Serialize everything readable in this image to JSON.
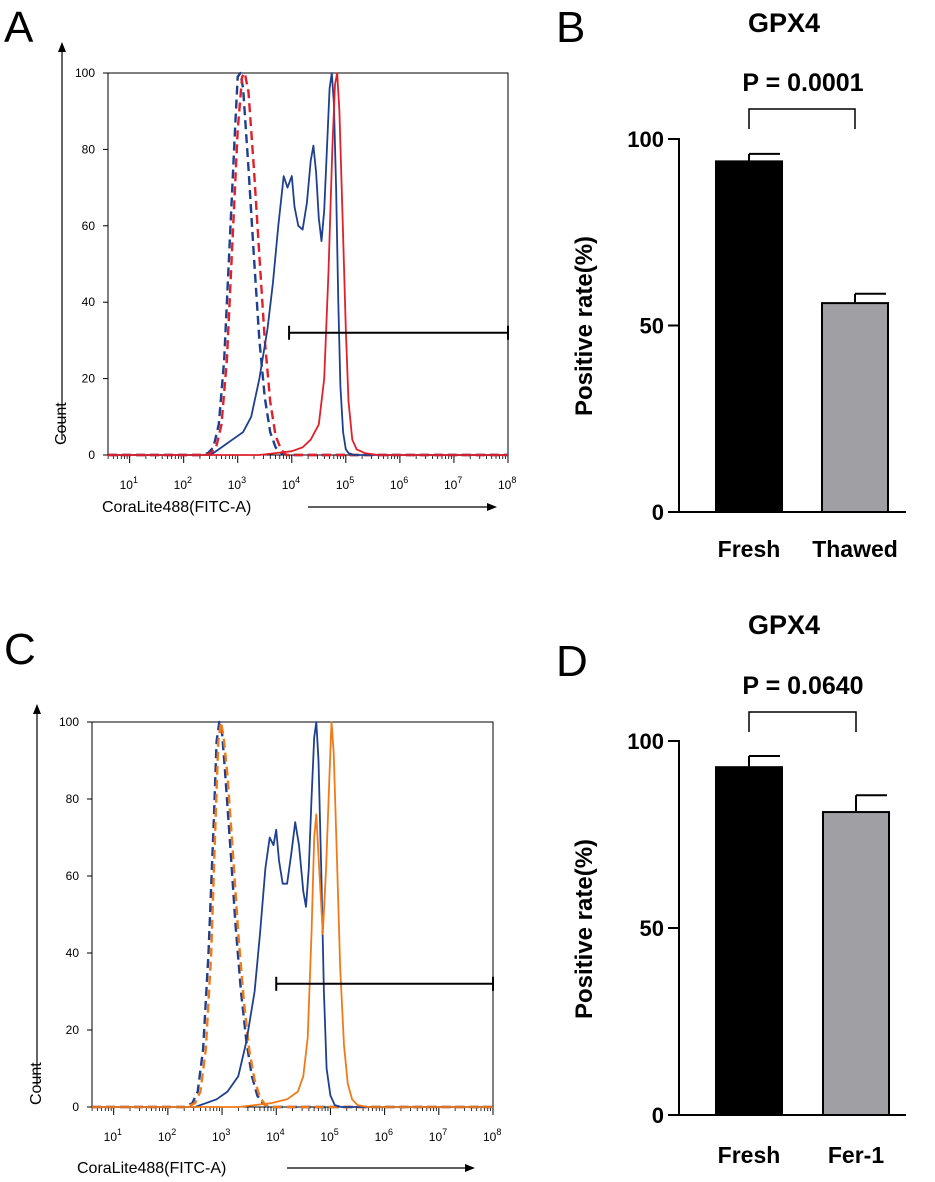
{
  "chart_data": [
    {
      "panel": "A",
      "type": "line",
      "subtype": "flow-cytometry-histogram",
      "xlabel": "CoraLite488(FITC-A)",
      "ylabel": "Count",
      "x_scale": "log",
      "xlim_exp": [
        0.6,
        8.0
      ],
      "ylim": [
        0,
        100
      ],
      "y_ticks": [
        0,
        20,
        40,
        60,
        80,
        100
      ],
      "y_tick_labels": [
        "0",
        "20",
        "40",
        "60",
        "80",
        "100"
      ],
      "x_ticks": [
        {
          "base": "10",
          "exp": "1",
          "pos": 1
        },
        {
          "base": "10",
          "exp": "2",
          "pos": 2
        },
        {
          "base": "10",
          "exp": "3",
          "pos": 3
        },
        {
          "base": "10",
          "exp": "4",
          "pos": 4
        },
        {
          "base": "10",
          "exp": "5",
          "pos": 5
        },
        {
          "base": "10",
          "exp": "6",
          "pos": 6
        },
        {
          "base": "10",
          "exp": "7",
          "pos": 7
        },
        {
          "base": "10",
          "exp": "8",
          "pos": 8
        }
      ],
      "gate": {
        "x_start": 3.95,
        "x_end": 8.0,
        "y": 32
      },
      "series": [
        {
          "name": "control-blue-dashed",
          "color": "#1f3f8f",
          "dashed": true,
          "points": [
            [
              0.6,
              0
            ],
            [
              2.3,
              0
            ],
            [
              2.45,
              0.5
            ],
            [
              2.55,
              2
            ],
            [
              2.65,
              8
            ],
            [
              2.75,
              25
            ],
            [
              2.85,
              55
            ],
            [
              2.95,
              85
            ],
            [
              3.0,
              99
            ],
            [
              3.05,
              100
            ],
            [
              3.1,
              96
            ],
            [
              3.2,
              75
            ],
            [
              3.3,
              52
            ],
            [
              3.4,
              30
            ],
            [
              3.5,
              15
            ],
            [
              3.6,
              6
            ],
            [
              3.7,
              2
            ],
            [
              3.8,
              0.5
            ],
            [
              3.9,
              0
            ],
            [
              8.0,
              0
            ]
          ]
        },
        {
          "name": "control-red-dashed",
          "color": "#e0202a",
          "dashed": true,
          "points": [
            [
              0.6,
              0
            ],
            [
              2.4,
              0
            ],
            [
              2.5,
              0.5
            ],
            [
              2.6,
              2
            ],
            [
              2.7,
              8
            ],
            [
              2.8,
              25
            ],
            [
              2.9,
              55
            ],
            [
              3.0,
              85
            ],
            [
              3.08,
              99
            ],
            [
              3.13,
              100
            ],
            [
              3.2,
              95
            ],
            [
              3.3,
              75
            ],
            [
              3.4,
              52
            ],
            [
              3.5,
              30
            ],
            [
              3.6,
              14
            ],
            [
              3.7,
              5
            ],
            [
              3.8,
              1.5
            ],
            [
              3.9,
              0
            ],
            [
              8.0,
              0
            ]
          ]
        },
        {
          "name": "stained-blue",
          "color": "#1f3f8f",
          "dashed": false,
          "points": [
            [
              0.6,
              0
            ],
            [
              2.5,
              0
            ],
            [
              2.7,
              2
            ],
            [
              2.9,
              4
            ],
            [
              3.1,
              6
            ],
            [
              3.25,
              10
            ],
            [
              3.4,
              20
            ],
            [
              3.55,
              33
            ],
            [
              3.65,
              45
            ],
            [
              3.75,
              60
            ],
            [
              3.85,
              73
            ],
            [
              3.92,
              70
            ],
            [
              4.0,
              73
            ],
            [
              4.05,
              65
            ],
            [
              4.12,
              60
            ],
            [
              4.2,
              59
            ],
            [
              4.28,
              66
            ],
            [
              4.35,
              77
            ],
            [
              4.4,
              81
            ],
            [
              4.45,
              74
            ],
            [
              4.5,
              62
            ],
            [
              4.55,
              56
            ],
            [
              4.6,
              64
            ],
            [
              4.65,
              80
            ],
            [
              4.7,
              96
            ],
            [
              4.74,
              100
            ],
            [
              4.78,
              92
            ],
            [
              4.82,
              70
            ],
            [
              4.86,
              40
            ],
            [
              4.9,
              18
            ],
            [
              4.95,
              6
            ],
            [
              5.0,
              1.5
            ],
            [
              5.05,
              0.5
            ],
            [
              5.15,
              0
            ],
            [
              8.0,
              0
            ]
          ]
        },
        {
          "name": "stained-red",
          "color": "#e0202a",
          "dashed": false,
          "points": [
            [
              0.6,
              0
            ],
            [
              3.4,
              0
            ],
            [
              3.7,
              0.5
            ],
            [
              4.0,
              1
            ],
            [
              4.2,
              2
            ],
            [
              4.35,
              4
            ],
            [
              4.5,
              8
            ],
            [
              4.6,
              20
            ],
            [
              4.68,
              48
            ],
            [
              4.75,
              80
            ],
            [
              4.8,
              97
            ],
            [
              4.84,
              100
            ],
            [
              4.88,
              90
            ],
            [
              4.94,
              62
            ],
            [
              5.0,
              33
            ],
            [
              5.05,
              14
            ],
            [
              5.12,
              4
            ],
            [
              5.2,
              1.5
            ],
            [
              5.35,
              0.5
            ],
            [
              5.6,
              0
            ],
            [
              8.0,
              0
            ]
          ]
        }
      ]
    },
    {
      "panel": "B",
      "type": "bar",
      "title": "GPX4",
      "ylabel": "Positive rate(%)",
      "ylim": [
        0,
        100
      ],
      "y_ticks": [
        0,
        50,
        100
      ],
      "y_tick_labels": [
        "0",
        "50",
        "100"
      ],
      "categories": [
        "Fresh",
        "Thawed"
      ],
      "values": [
        94,
        56
      ],
      "errors": [
        2,
        2.5
      ],
      "colors": [
        "#000000",
        "#a0a0a4"
      ],
      "p_value": "P = 0.0001"
    },
    {
      "panel": "C",
      "type": "line",
      "subtype": "flow-cytometry-histogram",
      "xlabel": "CoraLite488(FITC-A)",
      "ylabel": "Count",
      "x_scale": "log",
      "xlim_exp": [
        0.6,
        8.0
      ],
      "ylim": [
        0,
        100
      ],
      "y_ticks": [
        0,
        20,
        40,
        60,
        80,
        100
      ],
      "y_tick_labels": [
        "0",
        "20",
        "40",
        "60",
        "80",
        "100"
      ],
      "x_ticks": [
        {
          "base": "10",
          "exp": "1",
          "pos": 1
        },
        {
          "base": "10",
          "exp": "2",
          "pos": 2
        },
        {
          "base": "10",
          "exp": "3",
          "pos": 3
        },
        {
          "base": "10",
          "exp": "4",
          "pos": 4
        },
        {
          "base": "10",
          "exp": "5",
          "pos": 5
        },
        {
          "base": "10",
          "exp": "6",
          "pos": 6
        },
        {
          "base": "10",
          "exp": "7",
          "pos": 7
        },
        {
          "base": "10",
          "exp": "8",
          "pos": 8
        }
      ],
      "gate": {
        "x_start": 4.0,
        "x_end": 8.0,
        "y": 32
      },
      "series": [
        {
          "name": "control-blue-dashed",
          "color": "#1f3f8f",
          "dashed": true,
          "points": [
            [
              0.6,
              0
            ],
            [
              2.3,
              0
            ],
            [
              2.45,
              1
            ],
            [
              2.55,
              4
            ],
            [
              2.65,
              15
            ],
            [
              2.75,
              40
            ],
            [
              2.85,
              75
            ],
            [
              2.9,
              95
            ],
            [
              2.95,
              100
            ],
            [
              3.0,
              97
            ],
            [
              3.05,
              88
            ],
            [
              3.15,
              68
            ],
            [
              3.25,
              47
            ],
            [
              3.35,
              30
            ],
            [
              3.45,
              17
            ],
            [
              3.55,
              8
            ],
            [
              3.65,
              3
            ],
            [
              3.75,
              1
            ],
            [
              3.85,
              0
            ],
            [
              8.0,
              0
            ]
          ]
        },
        {
          "name": "control-orange-dashed",
          "color": "#f07a1a",
          "dashed": true,
          "points": [
            [
              0.6,
              0
            ],
            [
              2.35,
              0
            ],
            [
              2.5,
              1
            ],
            [
              2.6,
              4
            ],
            [
              2.7,
              15
            ],
            [
              2.8,
              40
            ],
            [
              2.88,
              75
            ],
            [
              2.93,
              95
            ],
            [
              2.98,
              100
            ],
            [
              3.03,
              96
            ],
            [
              3.1,
              86
            ],
            [
              3.2,
              66
            ],
            [
              3.3,
              45
            ],
            [
              3.4,
              28
            ],
            [
              3.5,
              15
            ],
            [
              3.6,
              7
            ],
            [
              3.7,
              2.5
            ],
            [
              3.8,
              0.5
            ],
            [
              3.9,
              0
            ],
            [
              8.0,
              0
            ]
          ]
        },
        {
          "name": "stained-blue",
          "color": "#1f3f8f",
          "dashed": false,
          "points": [
            [
              0.6,
              0
            ],
            [
              2.5,
              0
            ],
            [
              2.7,
              1
            ],
            [
              2.9,
              2
            ],
            [
              3.1,
              4
            ],
            [
              3.3,
              8
            ],
            [
              3.45,
              17
            ],
            [
              3.6,
              30
            ],
            [
              3.7,
              45
            ],
            [
              3.8,
              62
            ],
            [
              3.88,
              70
            ],
            [
              3.95,
              68
            ],
            [
              4.0,
              72
            ],
            [
              4.05,
              64
            ],
            [
              4.12,
              58
            ],
            [
              4.2,
              58
            ],
            [
              4.28,
              66
            ],
            [
              4.35,
              74
            ],
            [
              4.42,
              68
            ],
            [
              4.5,
              56
            ],
            [
              4.55,
              52
            ],
            [
              4.6,
              62
            ],
            [
              4.65,
              80
            ],
            [
              4.7,
              96
            ],
            [
              4.74,
              100
            ],
            [
              4.78,
              90
            ],
            [
              4.83,
              62
            ],
            [
              4.88,
              30
            ],
            [
              4.93,
              10
            ],
            [
              5.0,
              3
            ],
            [
              5.08,
              0.5
            ],
            [
              5.2,
              0
            ],
            [
              8.0,
              0
            ]
          ]
        },
        {
          "name": "stained-orange",
          "color": "#f07a1a",
          "dashed": false,
          "points": [
            [
              0.6,
              0
            ],
            [
              3.3,
              0
            ],
            [
              3.6,
              0.5
            ],
            [
              3.9,
              1
            ],
            [
              4.2,
              2
            ],
            [
              4.4,
              4
            ],
            [
              4.5,
              8
            ],
            [
              4.58,
              18
            ],
            [
              4.65,
              45
            ],
            [
              4.7,
              70
            ],
            [
              4.74,
              76
            ],
            [
              4.8,
              60
            ],
            [
              4.86,
              45
            ],
            [
              4.92,
              62
            ],
            [
              4.98,
              85
            ],
            [
              5.02,
              100
            ],
            [
              5.06,
              92
            ],
            [
              5.12,
              65
            ],
            [
              5.18,
              36
            ],
            [
              5.25,
              16
            ],
            [
              5.32,
              6
            ],
            [
              5.4,
              2
            ],
            [
              5.5,
              0.5
            ],
            [
              5.7,
              0
            ],
            [
              8.0,
              0
            ]
          ]
        }
      ]
    },
    {
      "panel": "D",
      "type": "bar",
      "title": "GPX4",
      "ylabel": "Positive rate(%)",
      "ylim": [
        0,
        100
      ],
      "y_ticks": [
        0,
        50,
        100
      ],
      "y_tick_labels": [
        "0",
        "50",
        "100"
      ],
      "categories": [
        "Fresh",
        "Fer-1"
      ],
      "values": [
        93,
        81
      ],
      "errors": [
        3,
        4.5
      ],
      "colors": [
        "#000000",
        "#a0a0a4"
      ],
      "p_value": "P = 0.0640"
    }
  ]
}
